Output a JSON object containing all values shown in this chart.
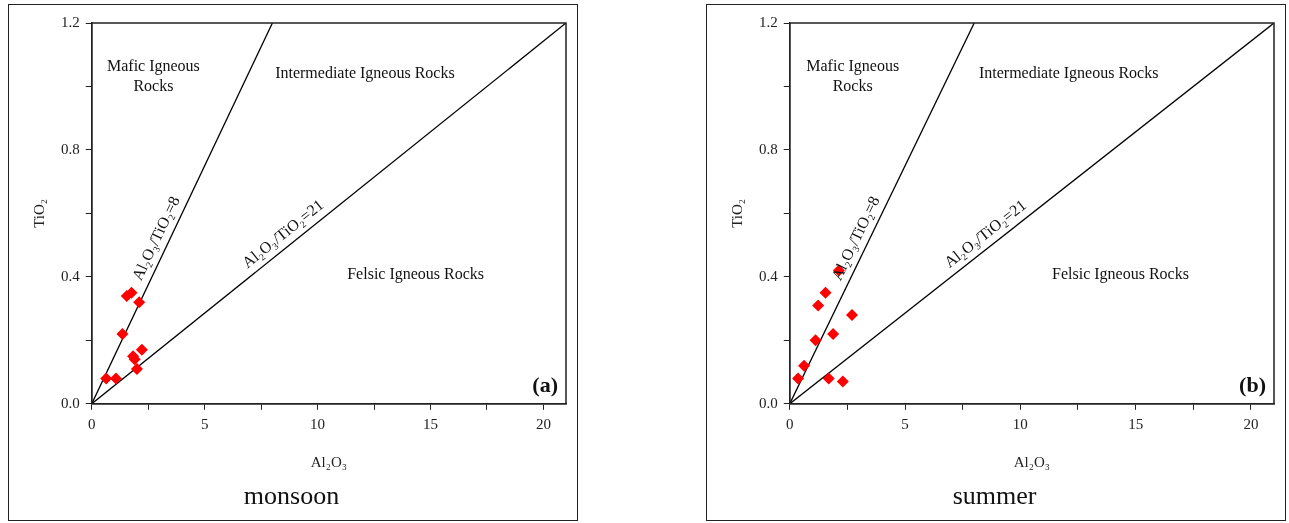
{
  "chart_data": [
    {
      "type": "scatter",
      "title": "monsoon",
      "xlabel": "Al₂O₃",
      "ylabel": "TiO₂",
      "marker": "diamond",
      "legend": false,
      "grid": false,
      "xlim": [
        0,
        21
      ],
      "xticks": [
        0,
        {
          "value": 2.5,
          "label": null
        },
        5,
        {
          "value": 7.5,
          "label": null
        },
        10,
        {
          "value": 12.5,
          "label": null
        },
        15,
        {
          "value": 17.5,
          "label": null
        },
        20
      ],
      "ylim": [
        0,
        1.2
      ],
      "yticks": [
        {
          "value": 0,
          "label": "0.0"
        },
        {
          "value": 0.2,
          "label": null
        },
        {
          "value": 0.4,
          "label": "0.4"
        },
        {
          "value": 0.6,
          "label": null
        },
        {
          "value": 0.8,
          "label": "0.8"
        },
        {
          "value": 1.0,
          "label": null
        },
        {
          "value": 1.2,
          "label": "1.2"
        }
      ],
      "series": [
        {
          "color": "#ff0000",
          "x": [
            0.64,
            1.07,
            1.55,
            1.76,
            2.1,
            1.36,
            1.83,
            1.9,
            2.22,
            2.0
          ],
          "values": [
            0.08,
            0.08,
            0.34,
            0.35,
            0.32,
            0.22,
            0.15,
            0.14,
            0.17,
            0.11
          ]
        },
        {
          "type": "line",
          "name": "Al₂O₃/TiO₂=8",
          "color": "#000000",
          "marker": "none",
          "x": [
            0,
            8
          ],
          "values": [
            0,
            1.2
          ]
        },
        {
          "type": "line",
          "name": "Al₂O₃/TiO₂=21",
          "color": "#000000",
          "marker": "none",
          "x": [
            0,
            21
          ],
          "values": [
            0,
            1.2
          ]
        }
      ],
      "annotations": [
        "Mafic Igneous\nRocks",
        "Intermediate Igneous Rocks",
        "Felsic Igneous Rocks",
        "(a)"
      ]
    },
    {
      "type": "scatter",
      "title": "summer",
      "xlabel": "Al₂O₃",
      "ylabel": "TiO₂",
      "marker": "diamond",
      "legend": false,
      "grid": false,
      "xlim": [
        0,
        21
      ],
      "xticks": [
        0,
        {
          "value": 2.5,
          "label": null
        },
        5,
        {
          "value": 7.5,
          "label": null
        },
        10,
        {
          "value": 12.5,
          "label": null
        },
        15,
        {
          "value": 17.5,
          "label": null
        },
        20
      ],
      "ylim": [
        0,
        1.2
      ],
      "yticks": [
        {
          "value": 0,
          "label": "0.0"
        },
        {
          "value": 0.2,
          "label": null
        },
        {
          "value": 0.4,
          "label": "0.4"
        },
        {
          "value": 0.6,
          "label": null
        },
        {
          "value": 0.8,
          "label": "0.8"
        },
        {
          "value": 1.0,
          "label": null
        },
        {
          "value": 1.2,
          "label": "1.2"
        }
      ],
      "series": [
        {
          "color": "#ff0000",
          "x": [
            2.13,
            1.55,
            1.23,
            2.7,
            1.88,
            1.12,
            0.62,
            0.36,
            1.69,
            2.3
          ],
          "values": [
            0.42,
            0.35,
            0.31,
            0.28,
            0.22,
            0.2,
            0.12,
            0.08,
            0.08,
            0.07
          ]
        },
        {
          "type": "line",
          "name": "Al₂O₃/TiO₂=8",
          "color": "#000000",
          "marker": "none",
          "x": [
            0,
            8
          ],
          "values": [
            0,
            1.2
          ]
        },
        {
          "type": "line",
          "name": "Al₂O₃/TiO₂=21",
          "color": "#000000",
          "marker": "none",
          "x": [
            0,
            21
          ],
          "values": [
            0,
            1.2
          ]
        }
      ],
      "annotations": [
        "Mafic Igneous\nRocks",
        "Intermediate Igneous Rocks",
        "Felsic Igneous Rocks",
        "(b)"
      ]
    }
  ]
}
